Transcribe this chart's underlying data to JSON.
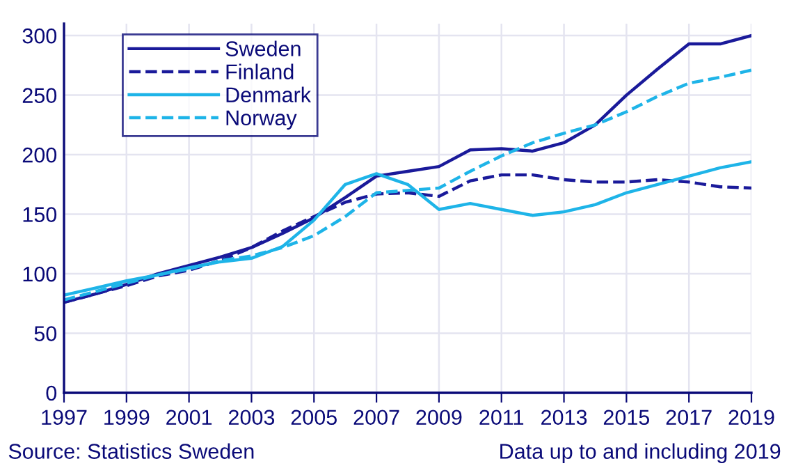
{
  "chart_data": {
    "type": "line",
    "x": [
      1997,
      1998,
      1999,
      2000,
      2001,
      2002,
      2003,
      2004,
      2005,
      2006,
      2007,
      2008,
      2009,
      2010,
      2011,
      2012,
      2013,
      2014,
      2015,
      2016,
      2017,
      2018,
      2019
    ],
    "series": [
      {
        "name": "Sweden",
        "color": "#1a1a9a",
        "line_style": "solid",
        "values": [
          76,
          83,
          91,
          100,
          107,
          114,
          122,
          134,
          147,
          164,
          182,
          186,
          190,
          204,
          205,
          203,
          210,
          225,
          250,
          272,
          293,
          293,
          300
        ]
      },
      {
        "name": "Finland",
        "color": "#1a1a9a",
        "line_style": "dashed",
        "values": [
          76,
          83,
          90,
          98,
          103,
          111,
          122,
          136,
          148,
          160,
          167,
          168,
          165,
          178,
          183,
          183,
          179,
          177,
          177,
          179,
          177,
          173,
          172
        ]
      },
      {
        "name": "Denmark",
        "color": "#1eb4e8",
        "line_style": "solid",
        "values": [
          82,
          88,
          94,
          99,
          105,
          110,
          113,
          123,
          145,
          175,
          184,
          175,
          154,
          159,
          154,
          149,
          152,
          158,
          168,
          175,
          182,
          189,
          194
        ]
      },
      {
        "name": "Norway",
        "color": "#1eb4e8",
        "line_style": "dashed",
        "values": [
          78,
          85,
          92,
          99,
          104,
          111,
          115,
          122,
          132,
          148,
          168,
          170,
          172,
          186,
          199,
          210,
          218,
          225,
          236,
          249,
          260,
          265,
          271
        ]
      }
    ],
    "xlim": [
      1997,
      2019
    ],
    "xticks": [
      1997,
      1999,
      2001,
      2003,
      2005,
      2007,
      2009,
      2011,
      2013,
      2015,
      2017,
      2019
    ],
    "ylim": [
      0,
      310
    ],
    "yticks": [
      0,
      50,
      100,
      150,
      200,
      250,
      300
    ],
    "grid": true,
    "legend": "top left",
    "marker": "none",
    "annotations": [
      "Source: Statistics Sweden",
      "Data up to and including 2019"
    ]
  }
}
